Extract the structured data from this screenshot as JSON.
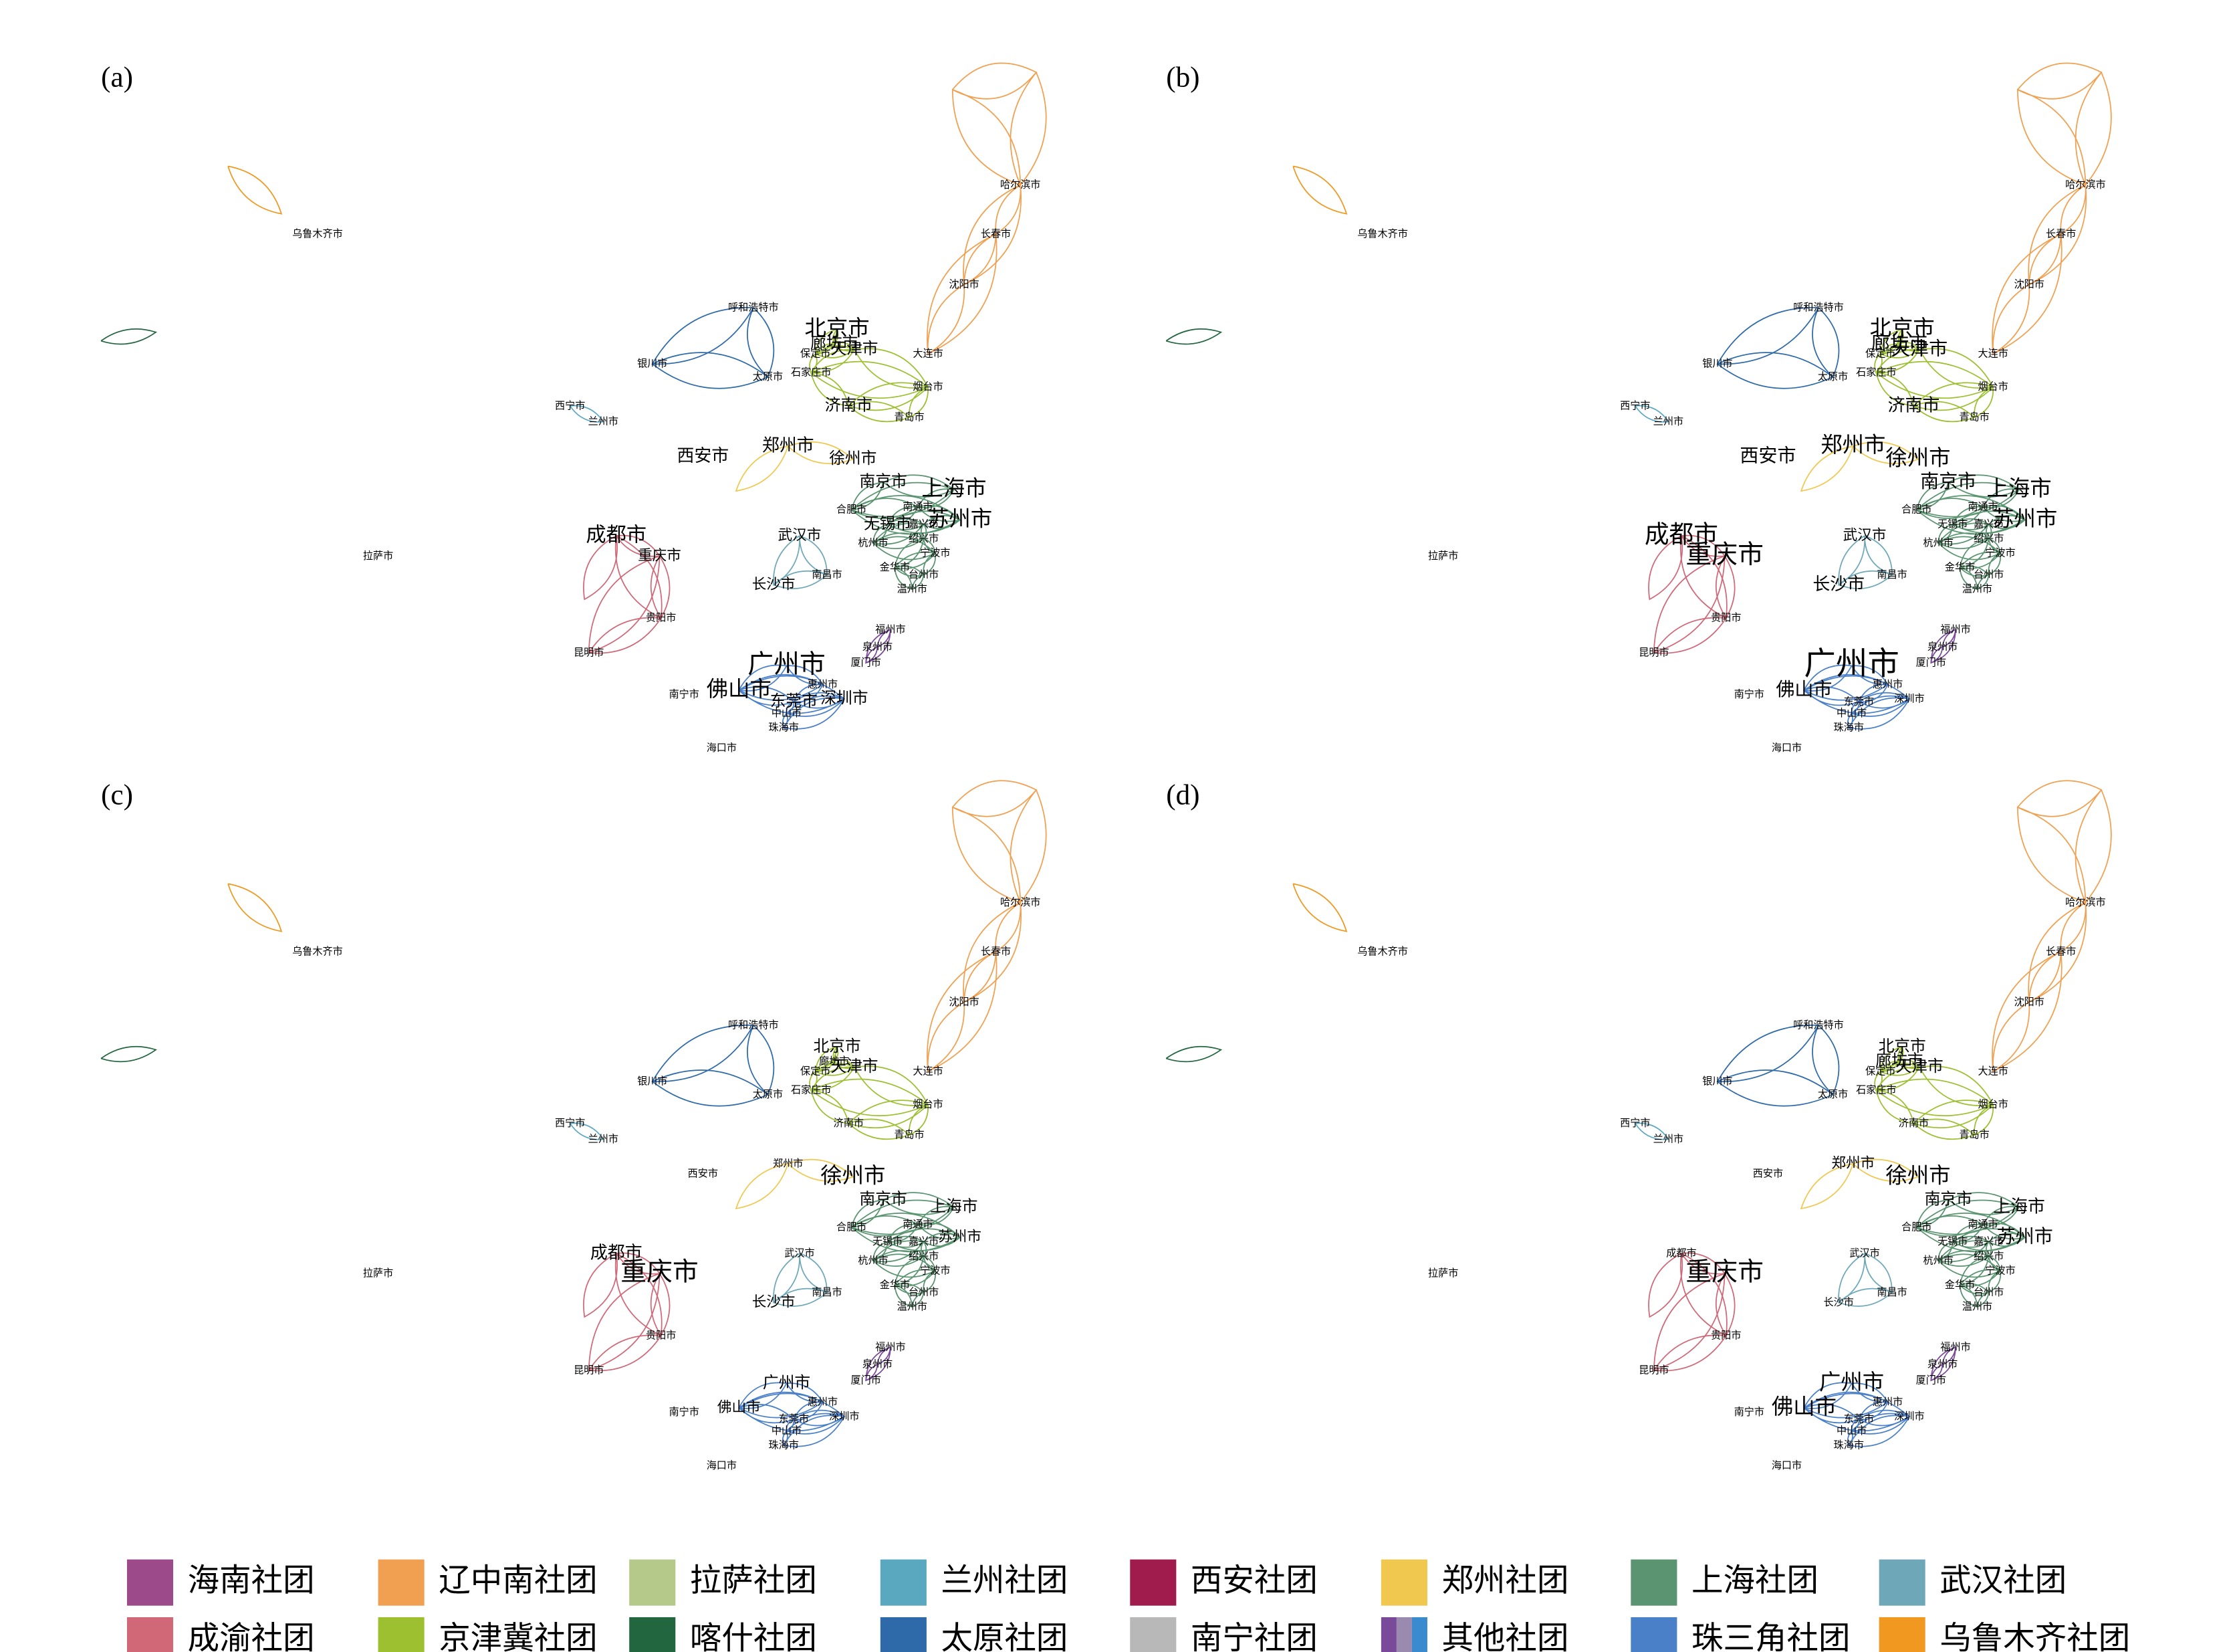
{
  "panels": [
    {
      "label": "(a)",
      "cities": [
        "乌鲁木齐市",
        "哈尔滨市",
        "长春市",
        "沈阳市",
        "呼和浩特市",
        "北京市",
        "廊坊市",
        "保定市",
        "天津市",
        "大连市",
        "银川市",
        "太原市",
        "石家庄市",
        "烟台市",
        "济南市",
        "西宁市",
        "兰州市",
        "青岛市",
        "西安市",
        "郑州市",
        "徐州市",
        "南京市",
        "上海市",
        "合肥市",
        "南通市",
        "苏州市",
        "无锡市",
        "嘉兴市",
        "杭州市",
        "绍兴市",
        "宁波市",
        "成都市",
        "重庆市",
        "拉萨市",
        "武汉市",
        "金华市",
        "台州市",
        "长沙市",
        "南昌市",
        "温州市",
        "贵阳市",
        "福州市",
        "泉州市",
        "昆明市",
        "厦门市",
        "广州市",
        "惠州市",
        "南宁市",
        "佛山市",
        "东莞市",
        "深圳市",
        "中山市",
        "珠海市",
        "海口市"
      ]
    },
    {
      "label": "(b)",
      "cities": [
        "乌鲁木齐市",
        "哈尔滨市",
        "长春市",
        "沈阳市",
        "呼和浩特市",
        "北京市",
        "廊坊市",
        "保定市",
        "天津市",
        "大连市",
        "银川市",
        "太原市",
        "石家庄市",
        "烟台市",
        "济南市",
        "西宁市",
        "兰州市",
        "青岛市",
        "西安市",
        "郑州市",
        "徐州市",
        "南京市",
        "上海市",
        "合肥市",
        "南通市",
        "苏州市",
        "无锡市",
        "嘉兴市",
        "杭州市",
        "绍兴市",
        "宁波市",
        "成都市",
        "重庆市",
        "拉萨市",
        "武汉市",
        "金华市",
        "台州市",
        "长沙市",
        "南昌市",
        "温州市",
        "贵阳市",
        "福州市",
        "泉州市",
        "昆明市",
        "厦门市",
        "广州市",
        "惠州市",
        "南宁市",
        "佛山市",
        "东莞市",
        "深圳市",
        "中山市",
        "珠海市",
        "海口市"
      ]
    },
    {
      "label": "(c)",
      "cities": [
        "乌鲁木齐市",
        "哈尔滨市",
        "长春市",
        "沈阳市",
        "呼和浩特市",
        "北京市",
        "廊坊市",
        "保定市",
        "天津市",
        "大连市",
        "银川市",
        "太原市",
        "石家庄市",
        "烟台市",
        "济南市",
        "西宁市",
        "兰州市",
        "青岛市",
        "西安市",
        "郑州市",
        "徐州市",
        "南京市",
        "上海市",
        "合肥市",
        "南通市",
        "苏州市",
        "无锡市",
        "嘉兴市",
        "杭州市",
        "绍兴市",
        "宁波市",
        "成都市",
        "重庆市",
        "拉萨市",
        "武汉市",
        "金华市",
        "台州市",
        "长沙市",
        "南昌市",
        "温州市",
        "贵阳市",
        "福州市",
        "泉州市",
        "昆明市",
        "厦门市",
        "广州市",
        "惠州市",
        "南宁市",
        "佛山市",
        "东莞市",
        "深圳市",
        "中山市",
        "珠海市",
        "海口市"
      ]
    },
    {
      "label": "(d)",
      "cities": [
        "乌鲁木齐市",
        "哈尔滨市",
        "长春市",
        "沈阳市",
        "呼和浩特市",
        "北京市",
        "廊坊市",
        "保定市",
        "天津市",
        "大连市",
        "银川市",
        "太原市",
        "石家庄市",
        "烟台市",
        "济南市",
        "西宁市",
        "兰州市",
        "青岛市",
        "西安市",
        "郑州市",
        "徐州市",
        "南京市",
        "上海市",
        "合肥市",
        "南通市",
        "苏州市",
        "无锡市",
        "嘉兴市",
        "杭州市",
        "绍兴市",
        "宁波市",
        "成都市",
        "重庆市",
        "拉萨市",
        "武汉市",
        "金华市",
        "台州市",
        "长沙市",
        "南昌市",
        "温州市",
        "贵阳市",
        "福州市",
        "泉州市",
        "昆明市",
        "厦门市",
        "广州市",
        "惠州市",
        "南宁市",
        "佛山市",
        "东莞市",
        "深圳市",
        "中山市",
        "珠海市",
        "海口市"
      ]
    }
  ],
  "legend": [
    {
      "name": "海南社团",
      "color": "#9c4a8a"
    },
    {
      "name": "辽中南社团",
      "color": "#f0a050"
    },
    {
      "name": "拉萨社团",
      "color": "#b5c98a"
    },
    {
      "name": "兰州社团",
      "color": "#5aa8c0"
    },
    {
      "name": "西安社团",
      "color": "#a01c4c"
    },
    {
      "name": "郑州社团",
      "color": "#f0c850"
    },
    {
      "name": "上海社团",
      "color": "#5a9470"
    },
    {
      "name": "武汉社团",
      "color": "#6ea8b8"
    },
    {
      "name": "成渝社团",
      "color": "#d06878"
    },
    {
      "name": "京津冀社团",
      "color": "#9cc030"
    },
    {
      "name": "喀什社团",
      "color": "#226640"
    },
    {
      "name": "太原社团",
      "color": "#2e6aaa"
    },
    {
      "name": "南宁社团",
      "color": "#b8b8b8"
    },
    {
      "name": "其他社团",
      "color": [
        "#7a4a9a",
        "#9a8ab0",
        "#3a8ad0"
      ]
    },
    {
      "name": "珠三角社团",
      "color": "#4a80c8"
    },
    {
      "name": "乌鲁木齐社团",
      "color": "#f09820"
    }
  ]
}
